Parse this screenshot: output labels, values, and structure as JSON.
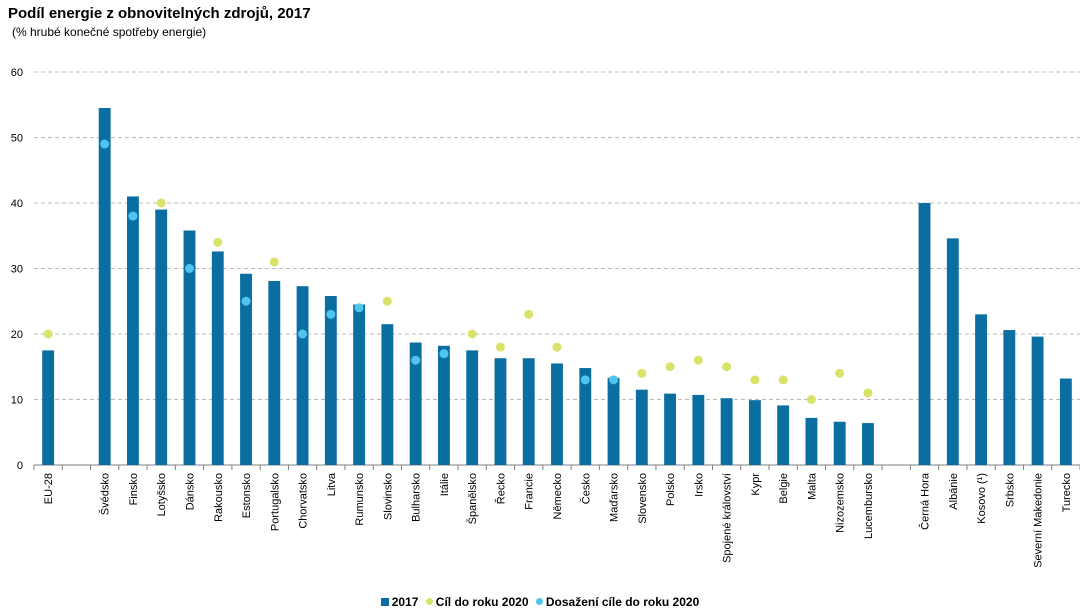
{
  "chart_data": {
    "type": "bar",
    "title": "Podíl energie z obnovitelných zdrojů, 2017",
    "subtitle": "(% hrubé konečné spotřeby energie)",
    "ylim": [
      0,
      60
    ],
    "yticks": [
      0,
      10,
      20,
      30,
      40,
      50,
      60
    ],
    "grid": true,
    "legend_position": "bottom",
    "colors": {
      "bar": "#0a6fa0",
      "target": "#d9e36a",
      "achieved": "#4fc4ee",
      "grid": "#bbbbbb",
      "axis": "#7f7f7f"
    },
    "categories": [
      "EU-28",
      "",
      "Švédsko",
      "Finsko",
      "Lotyšsko",
      "Dánsko",
      "Rakousko",
      "Estonsko",
      "Portugalsko",
      "Chorvatsko",
      "Litva",
      "Rumunsko",
      "Slovinsko",
      "Bulharsko",
      "Itálie",
      "Španělsko",
      "Řecko",
      "Francie",
      "Německo",
      "Česko",
      "Maďarsko",
      "Slovensko",
      "Polsko",
      "Irsko",
      "Spojené království",
      "Kypr",
      "Belgie",
      "Malta",
      "Nizozemsko",
      "Lucembursko",
      "",
      "Černá Hora",
      "Albánie",
      "Kosovo (¹)",
      "Srbsko",
      "Severní Makedonie",
      "Turecko"
    ],
    "series": [
      {
        "name": "2017",
        "kind": "bar",
        "values": [
          17.5,
          null,
          54.5,
          41.0,
          39.0,
          35.8,
          32.6,
          29.2,
          28.1,
          27.3,
          25.8,
          24.5,
          21.5,
          18.7,
          18.2,
          17.5,
          16.3,
          16.3,
          15.5,
          14.8,
          13.3,
          11.5,
          10.9,
          10.7,
          10.2,
          9.9,
          9.1,
          7.2,
          6.6,
          6.4,
          null,
          40.0,
          34.6,
          23.0,
          20.6,
          19.6,
          13.2
        ]
      },
      {
        "name": "Cíl do roku 2020",
        "kind": "marker",
        "values": [
          20,
          null,
          null,
          null,
          40,
          null,
          34,
          null,
          31,
          null,
          null,
          null,
          25,
          null,
          null,
          20,
          18,
          23,
          18,
          null,
          null,
          14,
          15,
          16,
          15,
          13,
          13,
          10,
          14,
          11,
          null,
          null,
          null,
          null,
          null,
          null,
          null
        ]
      },
      {
        "name": "Dosažení cíle do roku 2020",
        "kind": "marker",
        "values": [
          null,
          null,
          49,
          38,
          null,
          30,
          null,
          25,
          null,
          20,
          23,
          24,
          null,
          16,
          17,
          null,
          null,
          null,
          null,
          13,
          13,
          null,
          null,
          null,
          null,
          null,
          null,
          null,
          null,
          null,
          null,
          null,
          null,
          null,
          null,
          null,
          null
        ]
      }
    ]
  }
}
